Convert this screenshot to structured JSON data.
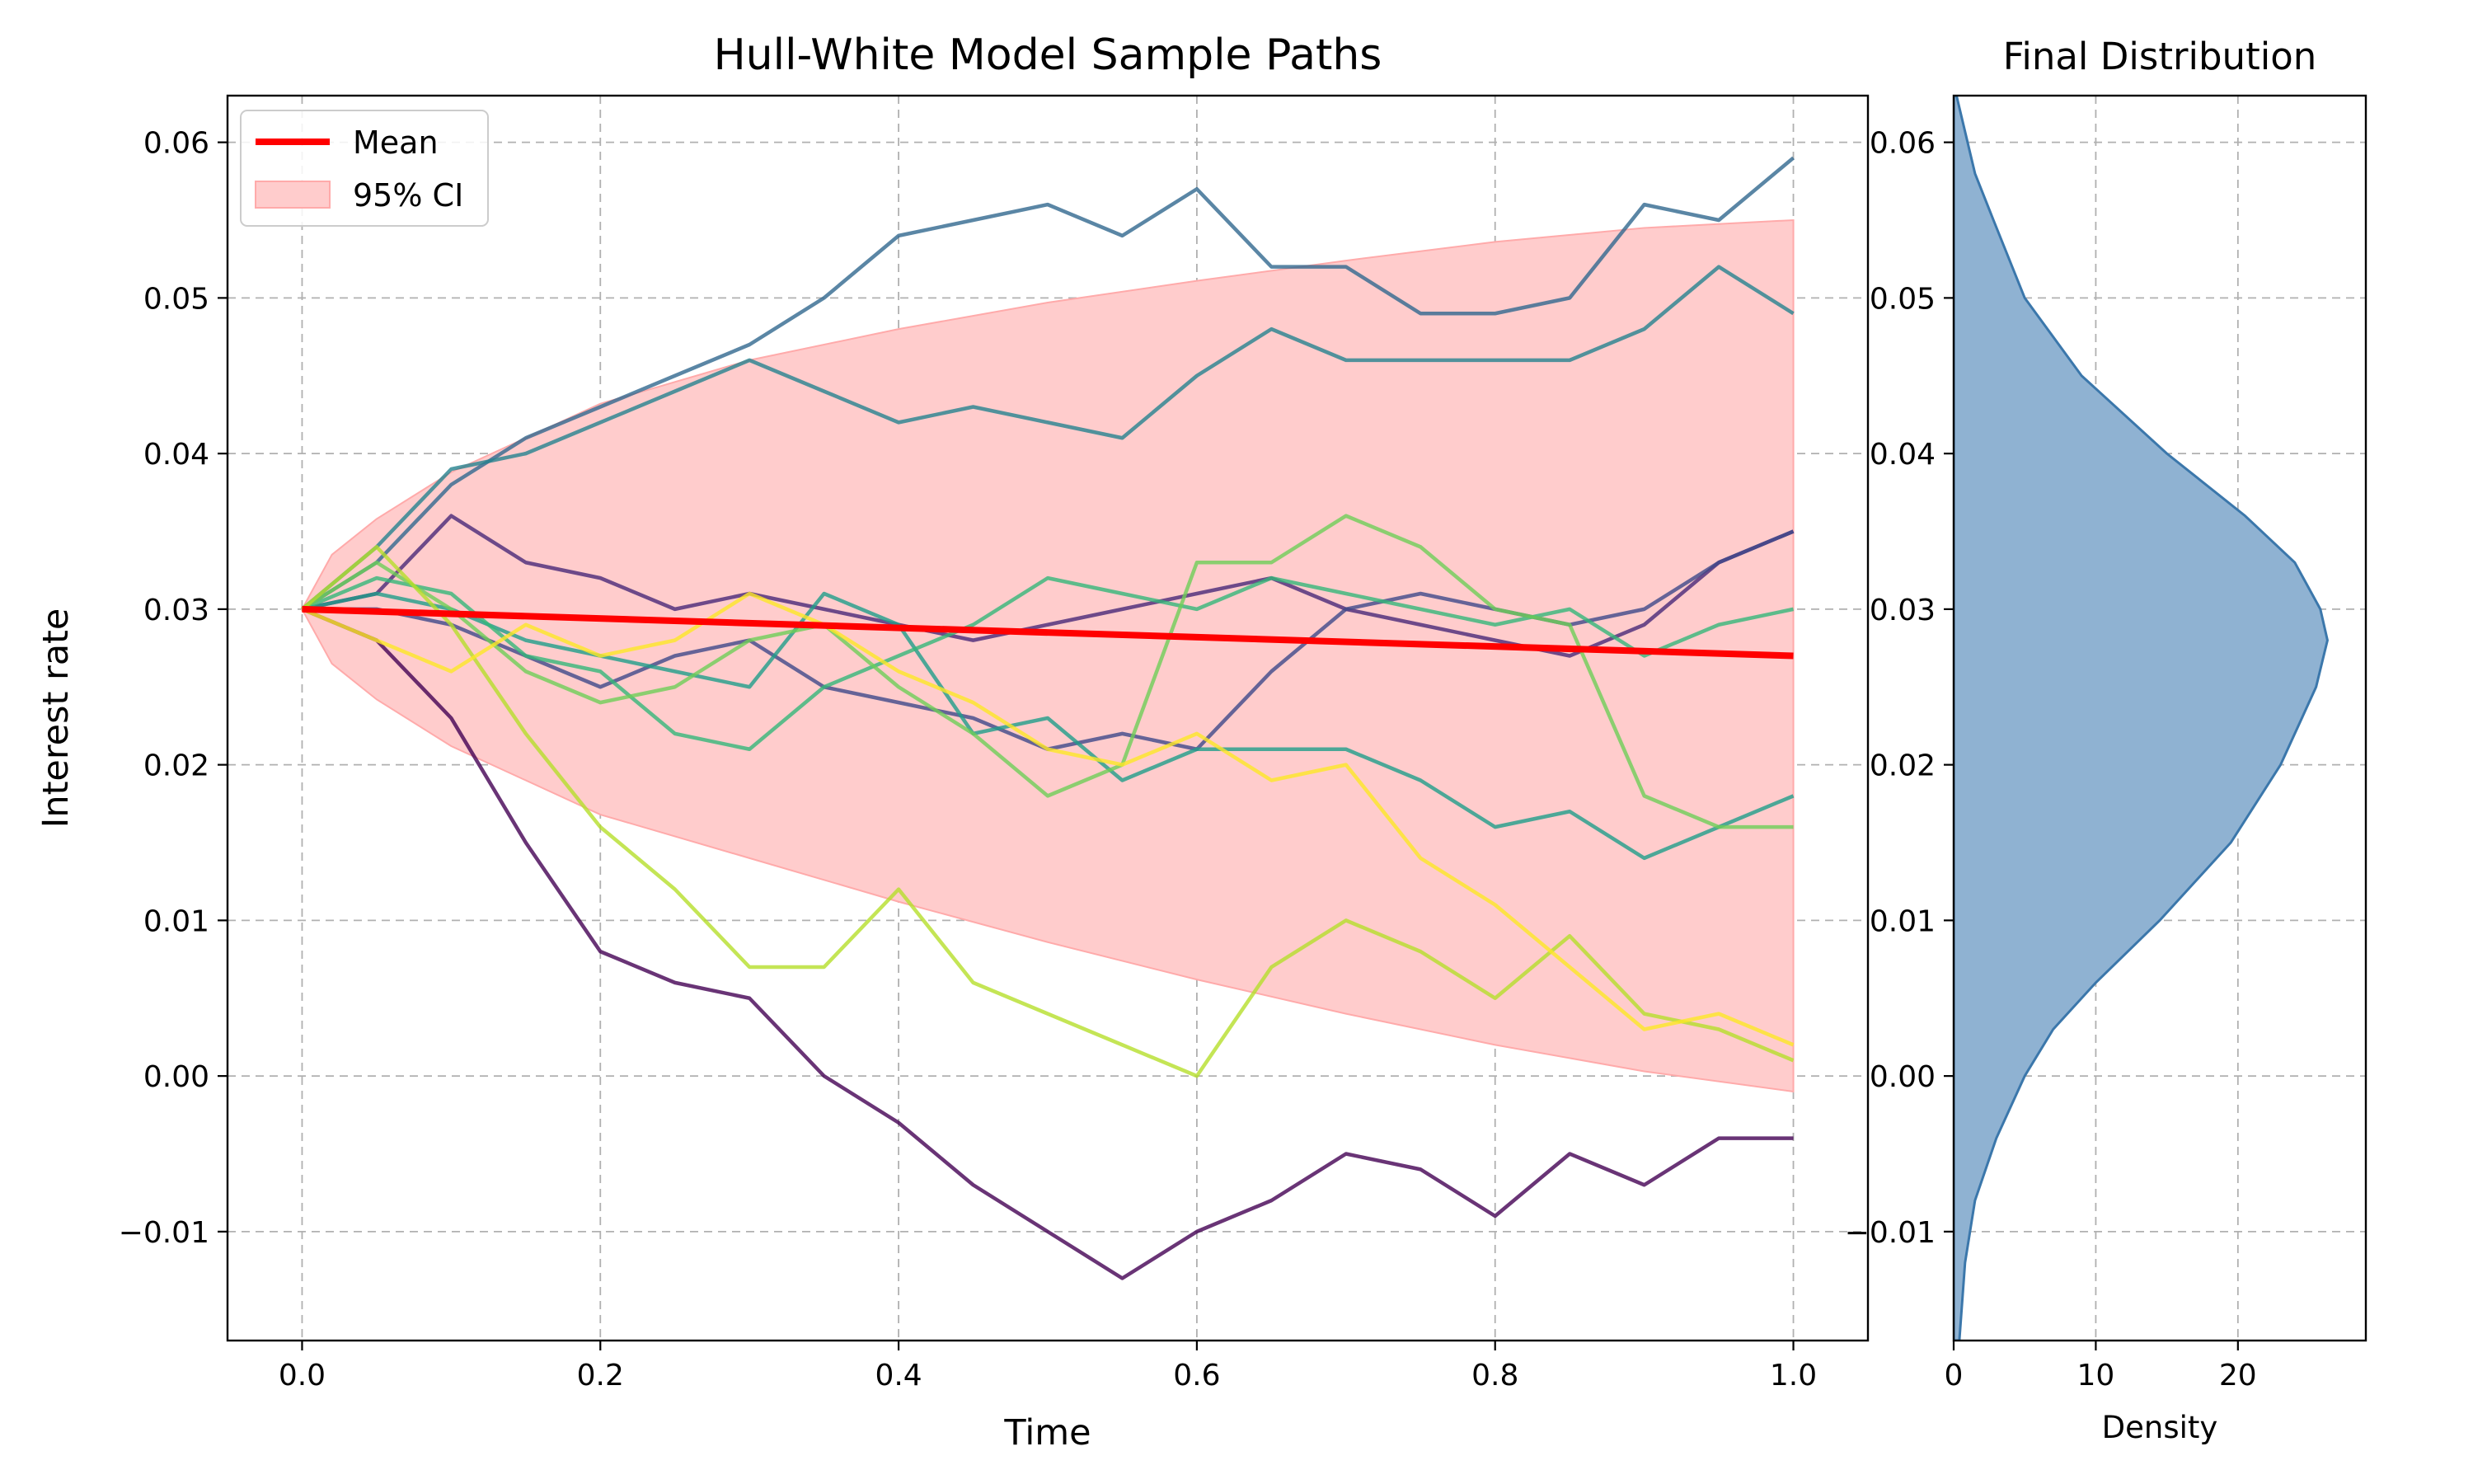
{
  "chart_data": [
    {
      "type": "line",
      "title": "Hull-White Model Sample Paths",
      "xlabel": "Time",
      "ylabel": "Interest rate",
      "xlim": [
        -0.05,
        1.05
      ],
      "ylim": [
        -0.017,
        0.063
      ],
      "xticks": [
        0.0,
        0.2,
        0.4,
        0.6,
        0.8,
        1.0
      ],
      "xtick_labels": [
        "0.0",
        "0.2",
        "0.4",
        "0.6",
        "0.8",
        "1.0"
      ],
      "yticks": [
        -0.01,
        0.0,
        0.01,
        0.02,
        0.03,
        0.04,
        0.05,
        0.06
      ],
      "ytick_labels": [
        "−0.01",
        "0.00",
        "0.01",
        "0.02",
        "0.03",
        "0.04",
        "0.05",
        "0.06"
      ],
      "grid": true,
      "legend": {
        "position": "top-left",
        "entries": [
          {
            "label": "Mean",
            "color": "#ff0000",
            "kind": "line"
          },
          {
            "label": "95% CI",
            "color": "#ffcccc",
            "kind": "patch"
          }
        ]
      },
      "mean": {
        "x": [
          0.0,
          1.0
        ],
        "y": [
          0.03,
          0.027
        ],
        "color": "#ff0000"
      },
      "ci": {
        "color": "#ffcccc",
        "edge_color": "#ffaaaa",
        "x": [
          0.0,
          0.02,
          0.05,
          0.1,
          0.2,
          0.3,
          0.4,
          0.5,
          0.6,
          0.7,
          0.8,
          0.9,
          1.0
        ],
        "upper": [
          0.03,
          0.0335,
          0.0358,
          0.0388,
          0.0432,
          0.046,
          0.048,
          0.0497,
          0.0511,
          0.0524,
          0.0536,
          0.0545,
          0.055
        ],
        "lower": [
          0.03,
          0.0265,
          0.0242,
          0.0212,
          0.0168,
          0.014,
          0.0112,
          0.0086,
          0.0062,
          0.004,
          0.002,
          0.0003,
          -0.001
        ]
      },
      "series": [
        {
          "name": "path-1",
          "color": "#440154",
          "x": [
            0.0,
            0.05,
            0.1,
            0.15,
            0.2,
            0.25,
            0.3,
            0.35,
            0.4,
            0.45,
            0.5,
            0.55,
            0.6,
            0.65,
            0.7,
            0.75,
            0.8,
            0.85,
            0.9,
            0.95,
            1.0
          ],
          "y": [
            0.03,
            0.028,
            0.023,
            0.015,
            0.008,
            0.006,
            0.005,
            0.0,
            -0.003,
            -0.007,
            -0.01,
            -0.013,
            -0.01,
            -0.008,
            -0.005,
            -0.006,
            -0.009,
            -0.005,
            -0.007,
            -0.004,
            -0.004
          ]
        },
        {
          "name": "path-2",
          "color": "#482878",
          "x": [
            0.0,
            0.05,
            0.1,
            0.15,
            0.2,
            0.25,
            0.3,
            0.35,
            0.4,
            0.45,
            0.5,
            0.55,
            0.6,
            0.65,
            0.7,
            0.75,
            0.8,
            0.85,
            0.9,
            0.95,
            1.0
          ],
          "y": [
            0.03,
            0.031,
            0.036,
            0.033,
            0.032,
            0.03,
            0.031,
            0.03,
            0.029,
            0.028,
            0.029,
            0.03,
            0.031,
            0.032,
            0.03,
            0.029,
            0.028,
            0.027,
            0.029,
            0.033,
            0.035
          ]
        },
        {
          "name": "path-3",
          "color": "#3e4989",
          "x": [
            0.0,
            0.05,
            0.1,
            0.15,
            0.2,
            0.25,
            0.3,
            0.35,
            0.4,
            0.45,
            0.5,
            0.55,
            0.6,
            0.65,
            0.7,
            0.75,
            0.8,
            0.85,
            0.9,
            0.95,
            1.0
          ],
          "y": [
            0.03,
            0.03,
            0.029,
            0.027,
            0.025,
            0.027,
            0.028,
            0.025,
            0.024,
            0.023,
            0.021,
            0.022,
            0.021,
            0.026,
            0.03,
            0.031,
            0.03,
            0.029,
            0.03,
            0.033,
            0.035
          ]
        },
        {
          "name": "path-4",
          "color": "#31688e",
          "x": [
            0.0,
            0.05,
            0.1,
            0.15,
            0.2,
            0.25,
            0.3,
            0.35,
            0.4,
            0.45,
            0.5,
            0.55,
            0.6,
            0.65,
            0.7,
            0.75,
            0.8,
            0.85,
            0.9,
            0.95,
            1.0
          ],
          "y": [
            0.03,
            0.033,
            0.038,
            0.041,
            0.043,
            0.045,
            0.047,
            0.05,
            0.054,
            0.055,
            0.056,
            0.054,
            0.057,
            0.052,
            0.052,
            0.049,
            0.049,
            0.05,
            0.056,
            0.055,
            0.059
          ]
        },
        {
          "name": "path-5",
          "color": "#26828e",
          "x": [
            0.0,
            0.05,
            0.1,
            0.15,
            0.2,
            0.25,
            0.3,
            0.35,
            0.4,
            0.45,
            0.5,
            0.55,
            0.6,
            0.65,
            0.7,
            0.75,
            0.8,
            0.85,
            0.9,
            0.95,
            1.0
          ],
          "y": [
            0.03,
            0.034,
            0.039,
            0.04,
            0.042,
            0.044,
            0.046,
            0.044,
            0.042,
            0.043,
            0.042,
            0.041,
            0.045,
            0.048,
            0.046,
            0.046,
            0.046,
            0.046,
            0.048,
            0.052,
            0.049
          ]
        },
        {
          "name": "path-6",
          "color": "#1f9e89",
          "x": [
            0.0,
            0.05,
            0.1,
            0.15,
            0.2,
            0.25,
            0.3,
            0.35,
            0.4,
            0.45,
            0.5,
            0.55,
            0.6,
            0.65,
            0.7,
            0.75,
            0.8,
            0.85,
            0.9,
            0.95,
            1.0
          ],
          "y": [
            0.03,
            0.031,
            0.03,
            0.028,
            0.027,
            0.026,
            0.025,
            0.031,
            0.029,
            0.022,
            0.023,
            0.019,
            0.021,
            0.021,
            0.021,
            0.019,
            0.016,
            0.017,
            0.014,
            0.016,
            0.018
          ]
        },
        {
          "name": "path-7",
          "color": "#35b779",
          "x": [
            0.0,
            0.05,
            0.1,
            0.15,
            0.2,
            0.25,
            0.3,
            0.35,
            0.4,
            0.45,
            0.5,
            0.55,
            0.6,
            0.65,
            0.7,
            0.75,
            0.8,
            0.85,
            0.9,
            0.95,
            1.0
          ],
          "y": [
            0.03,
            0.032,
            0.031,
            0.027,
            0.026,
            0.022,
            0.021,
            0.025,
            0.027,
            0.029,
            0.032,
            0.031,
            0.03,
            0.032,
            0.031,
            0.03,
            0.029,
            0.03,
            0.027,
            0.029,
            0.03
          ]
        },
        {
          "name": "path-8",
          "color": "#6ece58",
          "x": [
            0.0,
            0.05,
            0.1,
            0.15,
            0.2,
            0.25,
            0.3,
            0.35,
            0.4,
            0.45,
            0.5,
            0.55,
            0.6,
            0.65,
            0.7,
            0.75,
            0.8,
            0.85,
            0.9,
            0.95,
            1.0
          ],
          "y": [
            0.03,
            0.033,
            0.03,
            0.026,
            0.024,
            0.025,
            0.028,
            0.029,
            0.025,
            0.022,
            0.018,
            0.02,
            0.033,
            0.033,
            0.036,
            0.034,
            0.03,
            0.029,
            0.018,
            0.016,
            0.016
          ]
        },
        {
          "name": "path-9",
          "color": "#b5de2b",
          "x": [
            0.0,
            0.05,
            0.1,
            0.15,
            0.2,
            0.25,
            0.3,
            0.35,
            0.4,
            0.45,
            0.5,
            0.55,
            0.6,
            0.65,
            0.7,
            0.75,
            0.8,
            0.85,
            0.9,
            0.95,
            1.0
          ],
          "y": [
            0.03,
            0.034,
            0.029,
            0.022,
            0.016,
            0.012,
            0.007,
            0.007,
            0.012,
            0.006,
            0.004,
            0.002,
            0.0,
            0.007,
            0.01,
            0.008,
            0.005,
            0.009,
            0.004,
            0.003,
            0.001
          ]
        },
        {
          "name": "path-10",
          "color": "#fde725",
          "x": [
            0.0,
            0.05,
            0.1,
            0.15,
            0.2,
            0.25,
            0.3,
            0.35,
            0.4,
            0.45,
            0.5,
            0.55,
            0.6,
            0.65,
            0.7,
            0.75,
            0.8,
            0.85,
            0.9,
            0.95,
            1.0
          ],
          "y": [
            0.03,
            0.028,
            0.026,
            0.029,
            0.027,
            0.028,
            0.031,
            0.029,
            0.026,
            0.024,
            0.021,
            0.02,
            0.022,
            0.019,
            0.02,
            0.014,
            0.011,
            0.007,
            0.003,
            0.004,
            0.002
          ]
        }
      ]
    },
    {
      "type": "area",
      "title": "Final Distribution",
      "xlabel": "Density",
      "ylabel": "",
      "xlim": [
        0,
        29
      ],
      "ylim": [
        -0.017,
        0.063
      ],
      "xticks": [
        0,
        10,
        20
      ],
      "xtick_labels": [
        "0",
        "10",
        "20"
      ],
      "yticks": [
        -0.01,
        0.0,
        0.01,
        0.02,
        0.03,
        0.04,
        0.05,
        0.06
      ],
      "ytick_labels": [
        "−0.01",
        "0.00",
        "0.01",
        "0.02",
        "0.03",
        "0.04",
        "0.05",
        "0.06"
      ],
      "grid": true,
      "fill_color": "#8fb2d2",
      "edge_color": "#3b77ab",
      "y": [
        -0.017,
        -0.012,
        -0.008,
        -0.004,
        0.0,
        0.003,
        0.006,
        0.01,
        0.015,
        0.02,
        0.025,
        0.028,
        0.03,
        0.033,
        0.036,
        0.04,
        0.045,
        0.05,
        0.055,
        0.058,
        0.063
      ],
      "density": [
        0.4,
        0.8,
        1.5,
        3.0,
        5.0,
        7.0,
        10.0,
        14.5,
        19.5,
        23.0,
        25.5,
        26.3,
        25.8,
        24.0,
        20.5,
        15.0,
        9.0,
        5.0,
        2.8,
        1.5,
        0.2
      ]
    }
  ]
}
